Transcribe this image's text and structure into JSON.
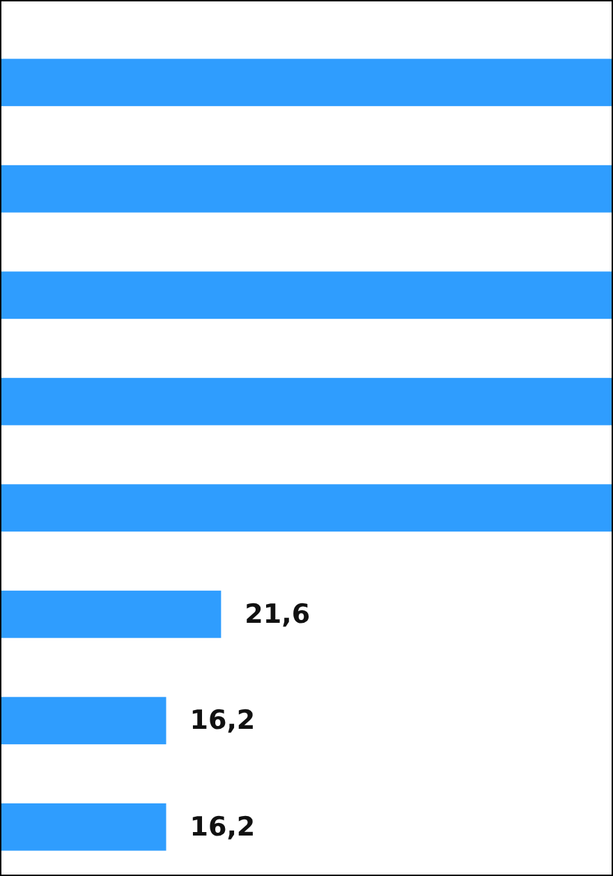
{
  "chart_data": {
    "type": "bar",
    "orientation": "horizontal",
    "categories": [
      null,
      null,
      null,
      null,
      null,
      null,
      null,
      null
    ],
    "values": [
      60,
      60,
      60,
      60,
      60,
      21.6,
      16.2,
      16.2
    ],
    "value_labels": [
      null,
      null,
      null,
      null,
      null,
      "21,6",
      "16,2",
      "16,2"
    ],
    "color": "#2f9dfe",
    "xlim": [
      0,
      60
    ],
    "tick_labels": false
  }
}
